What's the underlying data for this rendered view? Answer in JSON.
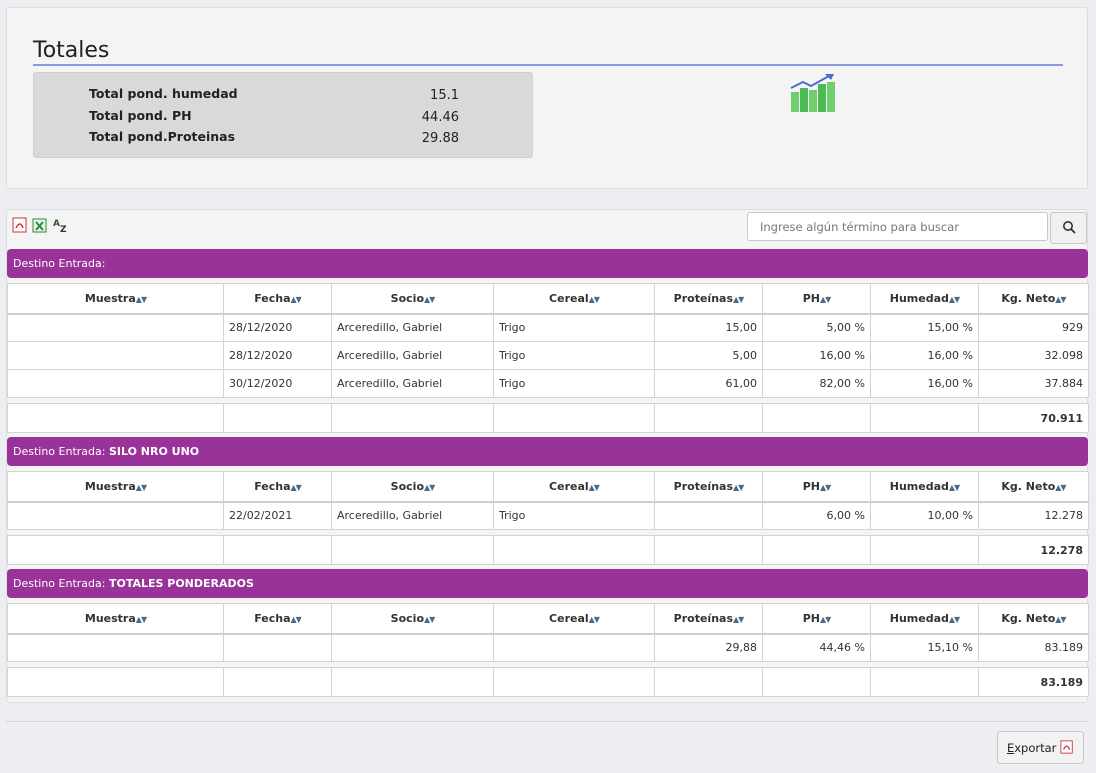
{
  "totals": {
    "title": "Totales",
    "rows": [
      {
        "label": "Total pond. humedad",
        "value": "15.1"
      },
      {
        "label": "Total pond. PH",
        "value": "44.46"
      },
      {
        "label": "Total pond.Proteinas",
        "value": "29.88"
      }
    ]
  },
  "toolbar": {
    "search_placeholder": "Ingrese algún término para buscar",
    "icons": [
      "pdf-icon",
      "excel-icon",
      "sort-az-icon",
      "search-icon"
    ]
  },
  "columns": [
    "Muestra",
    "Fecha",
    "Socio",
    "Cereal",
    "Proteínas",
    "PH",
    "Humedad",
    "Kg. Neto"
  ],
  "groups": [
    {
      "label": "Destino Entrada:",
      "name": "",
      "rows": [
        [
          "",
          "28/12/2020",
          "Arceredillo, Gabriel",
          "Trigo",
          "15,00",
          "5,00 %",
          "15,00 %",
          "929"
        ],
        [
          "",
          "28/12/2020",
          "Arceredillo, Gabriel",
          "Trigo",
          "5,00",
          "16,00 %",
          "16,00 %",
          "32.098"
        ],
        [
          "",
          "30/12/2020",
          "Arceredillo, Gabriel",
          "Trigo",
          "61,00",
          "82,00 %",
          "16,00 %",
          "37.884"
        ]
      ],
      "total": "70.911"
    },
    {
      "label": "Destino Entrada:",
      "name": "SILO NRO UNO",
      "rows": [
        [
          "",
          "22/02/2021",
          "Arceredillo, Gabriel",
          "Trigo",
          "",
          "6,00 %",
          "10,00 %",
          "12.278"
        ]
      ],
      "total": "12.278"
    },
    {
      "label": "Destino Entrada:",
      "name": "TOTALES PONDERADOS",
      "rows": [
        [
          "",
          "",
          "",
          "",
          "29,88",
          "44,46 %",
          "15,10 %",
          "83.189"
        ]
      ],
      "total": "83.189"
    }
  ],
  "footer": {
    "export_label_u": "E",
    "export_label_rest": "xportar"
  },
  "colors": {
    "group_header": "#993399",
    "rule": "#8d9be0"
  }
}
